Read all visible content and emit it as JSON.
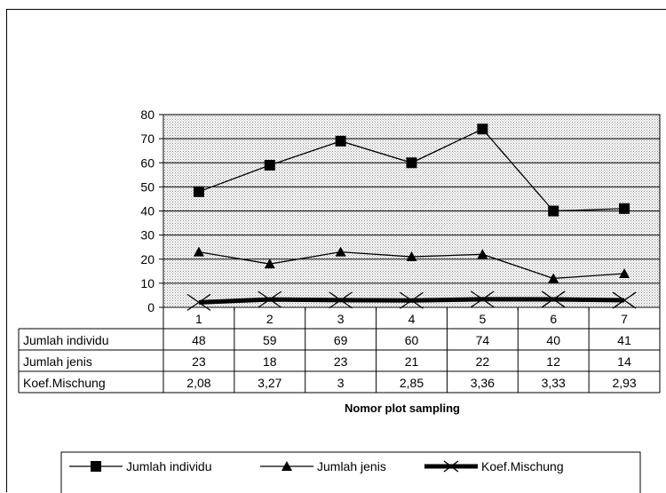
{
  "chart_data": {
    "type": "line",
    "title": "",
    "xlabel": "Nomor plot sampling",
    "ylabel": "",
    "ylim": [
      0,
      80
    ],
    "yticks": [
      0,
      10,
      20,
      30,
      40,
      50,
      60,
      70,
      80
    ],
    "categories": [
      "1",
      "2",
      "3",
      "4",
      "5",
      "6",
      "7"
    ],
    "grid": true,
    "legend_position": "bottom",
    "series": [
      {
        "name": "Jumlah individu",
        "marker": "square",
        "values": [
          48,
          59,
          69,
          60,
          74,
          40,
          41
        ],
        "labels": [
          "48",
          "59",
          "69",
          "60",
          "74",
          "40",
          "41"
        ]
      },
      {
        "name": "Jumlah jenis",
        "marker": "triangle",
        "values": [
          23,
          18,
          23,
          21,
          22,
          12,
          14
        ],
        "labels": [
          "23",
          "18",
          "23",
          "21",
          "22",
          "12",
          "14"
        ]
      },
      {
        "name": "Koef.Mischung",
        "marker": "x",
        "values": [
          2.08,
          3.27,
          3,
          2.85,
          3.36,
          3.33,
          2.93
        ],
        "labels": [
          "2,08",
          "3,27",
          "3",
          "2,85",
          "3,36",
          "3,33",
          "2,93"
        ]
      }
    ],
    "colors": {
      "plot_pattern": "#9a9a9a",
      "plot_background": "#ffffff",
      "line": "#000000"
    }
  }
}
